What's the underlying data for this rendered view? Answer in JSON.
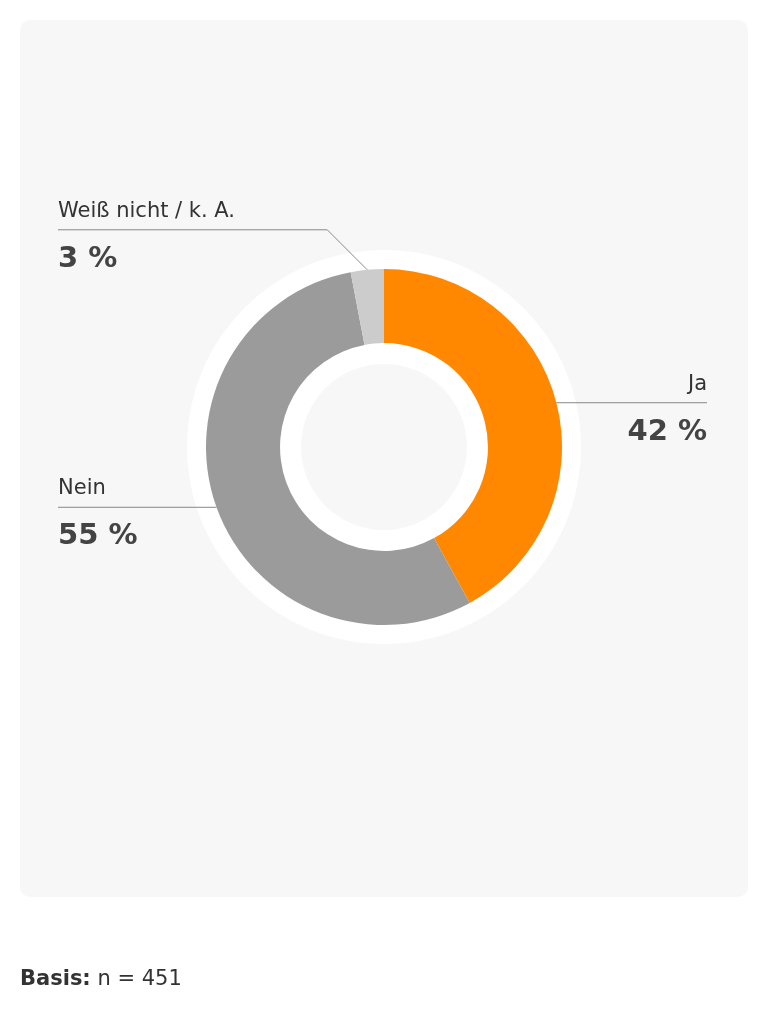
{
  "chart_data": {
    "type": "donut",
    "categories": [
      "Ja",
      "Nein",
      "Weiß nicht / k. A."
    ],
    "values": [
      42,
      55,
      3
    ],
    "colors": [
      "#ff8800",
      "#9b9b9b",
      "#cccccc"
    ],
    "value_labels": [
      "42 %",
      "55 %",
      "3 %"
    ],
    "legend": false,
    "annotations": [
      "Basis: n = 451"
    ]
  }
}
